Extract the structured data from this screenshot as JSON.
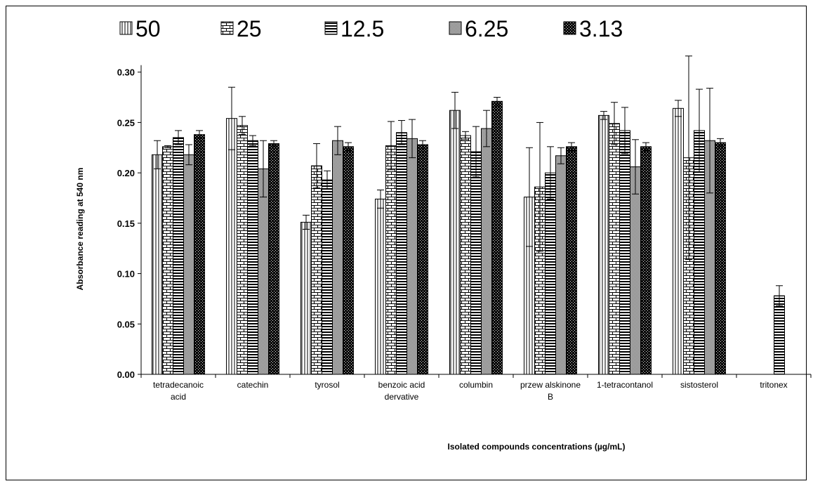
{
  "chart_data": {
    "type": "bar",
    "title": "",
    "xlabel": "Isolated compounds concentrations (µg/mL)",
    "ylabel": "Absorbance reading at 540 nm",
    "ylim": [
      0,
      0.32
    ],
    "yticks": [
      "0.00",
      "0.05",
      "0.10",
      "0.15",
      "0.20",
      "0.25",
      "0.30"
    ],
    "grid": false,
    "legend_position": "top",
    "categories": [
      [
        "tetradecanoic",
        "acid"
      ],
      [
        "catechin"
      ],
      [
        "tyrosol"
      ],
      [
        "benzoic acid",
        "dervative"
      ],
      [
        "columbin"
      ],
      [
        "przew alskinone",
        "B"
      ],
      [
        "1-tetracontanol"
      ],
      [
        "sistosterol"
      ],
      [
        "tritonex"
      ]
    ],
    "series": [
      {
        "name": "50",
        "pattern": "vertical-lines",
        "values": [
          0.218,
          0.254,
          0.151,
          0.174,
          0.262,
          0.176,
          0.257,
          0.264,
          null
        ],
        "errors": [
          0.014,
          0.031,
          0.007,
          0.009,
          0.018,
          0.049,
          0.004,
          0.008,
          null
        ]
      },
      {
        "name": "25",
        "pattern": "brick",
        "values": [
          0.226,
          0.247,
          0.207,
          0.227,
          0.237,
          0.186,
          0.249,
          0.215,
          0.078
        ],
        "errors": [
          0.001,
          0.009,
          0.022,
          0.024,
          0.004,
          0.064,
          0.021,
          0.101,
          0.01
        ]
      },
      {
        "name": "12.5",
        "pattern": "horizontal-lines",
        "values": [
          0.235,
          0.232,
          0.193,
          0.24,
          0.221,
          0.2,
          0.242,
          0.242,
          null
        ],
        "errors": [
          0.007,
          0.005,
          0.009,
          0.012,
          0.025,
          0.026,
          0.023,
          0.041,
          null
        ]
      },
      {
        "name": "6.25",
        "pattern": "fine-dots",
        "values": [
          0.218,
          0.204,
          0.232,
          0.234,
          0.244,
          0.217,
          0.206,
          0.232,
          null
        ],
        "errors": [
          0.01,
          0.028,
          0.014,
          0.019,
          0.018,
          0.008,
          0.027,
          0.052,
          null
        ]
      },
      {
        "name": "3.13",
        "pattern": "dark-checker",
        "values": [
          0.238,
          0.229,
          0.226,
          0.228,
          0.271,
          0.226,
          0.226,
          0.23,
          null
        ],
        "errors": [
          0.004,
          0.003,
          0.004,
          0.004,
          0.004,
          0.004,
          0.004,
          0.004,
          null
        ]
      }
    ]
  }
}
